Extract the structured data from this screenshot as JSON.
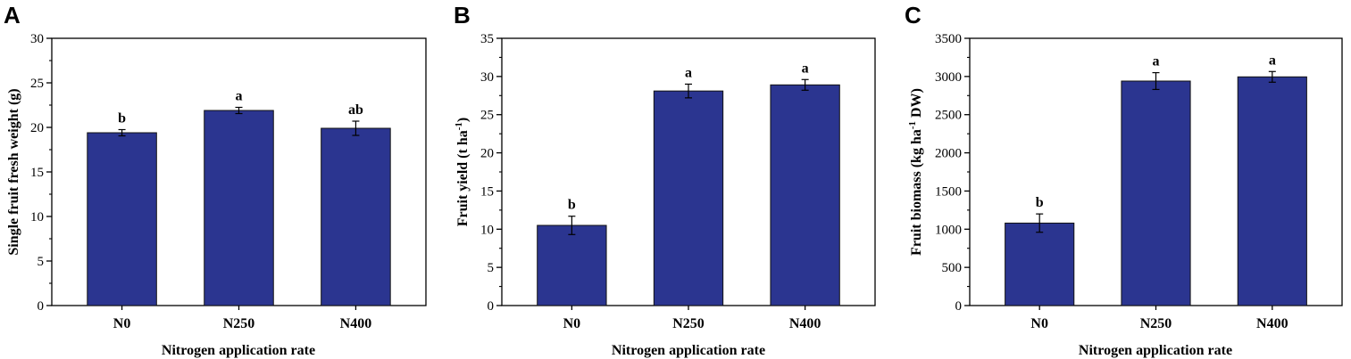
{
  "chart_data": [
    {
      "panel": "A",
      "type": "bar",
      "categories": [
        "N0",
        "N250",
        "N400"
      ],
      "values": [
        19.4,
        21.9,
        19.9
      ],
      "errors": [
        0.35,
        0.35,
        0.8
      ],
      "significance": [
        "b",
        "a",
        "ab"
      ],
      "xlabel": "Nitrogen application rate",
      "ylabel": "Single fruit fresh weight (g)",
      "ylabel_parts": [
        [
          "Single fruit fresh weight (g)",
          ""
        ]
      ],
      "ylim": [
        0,
        30
      ],
      "yticks": [
        0,
        5,
        10,
        15,
        20,
        25,
        30
      ],
      "bar_color": "#2b3590",
      "grid": false
    },
    {
      "panel": "B",
      "type": "bar",
      "categories": [
        "N0",
        "N250",
        "N400"
      ],
      "values": [
        10.5,
        28.1,
        28.9
      ],
      "errors": [
        1.2,
        0.9,
        0.7
      ],
      "significance": [
        "b",
        "a",
        "a"
      ],
      "xlabel": "Nitrogen application rate",
      "ylabel": "Fruit yield (t ha-1)",
      "ylabel_parts": [
        [
          "Fruit yield (t ha",
          ""
        ],
        [
          "-1",
          "sup"
        ],
        [
          ")",
          ""
        ]
      ],
      "ylim": [
        0,
        35
      ],
      "yticks": [
        0,
        5,
        10,
        15,
        20,
        25,
        30,
        35
      ],
      "bar_color": "#2b3590",
      "grid": false
    },
    {
      "panel": "C",
      "type": "bar",
      "categories": [
        "N0",
        "N250",
        "N400"
      ],
      "values": [
        1080,
        2940,
        2995
      ],
      "errors": [
        120,
        110,
        70
      ],
      "significance": [
        "b",
        "a",
        "a"
      ],
      "xlabel": "Nitrogen application rate",
      "ylabel": "Fruit biomass (kg ha-1 DW)",
      "ylabel_parts": [
        [
          "Fruit biomass (kg ha",
          ""
        ],
        [
          "-1",
          "sup"
        ],
        [
          " DW)",
          ""
        ]
      ],
      "ylim": [
        0,
        3500
      ],
      "yticks": [
        0,
        500,
        1000,
        1500,
        2000,
        2500,
        3000,
        3500
      ],
      "bar_color": "#2b3590",
      "grid": false
    }
  ]
}
